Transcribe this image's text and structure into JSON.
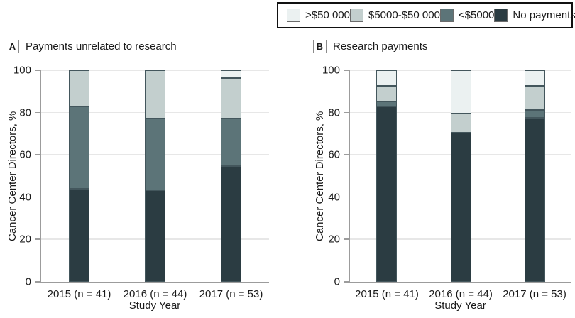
{
  "style": {
    "background": "#ffffff",
    "text_color": "#1a1a1a",
    "axis_color": "#9c9c9c",
    "grid_color": "#e7e7e7",
    "segment_border_color": "#43565c",
    "legend_border_color": "#111111"
  },
  "legend": {
    "items": [
      {
        "name": "gt-50000",
        "label": ">$50 000",
        "color": "#ebf1f1"
      },
      {
        "name": "5000-to-50000",
        "label": "$5000-$50 000",
        "color": "#c3cfce"
      },
      {
        "name": "lt-5000",
        "label": "<$5000",
        "color": "#5c7478"
      },
      {
        "name": "no-payments",
        "label": "No payments",
        "color": "#2b3c42"
      }
    ]
  },
  "panels": [
    {
      "letter": "A",
      "title": "Payments unrelated to research",
      "ylabel": "Cancer Center Directors, %",
      "xlabel": "Study Year"
    },
    {
      "letter": "B",
      "title": "Research payments",
      "ylabel": "Cancer Center Directors, %",
      "xlabel": "Study Year"
    }
  ],
  "chart_data": [
    {
      "type": "bar",
      "stacked": true,
      "title": "Payments unrelated to research",
      "xlabel": "Study Year",
      "ylabel": "Cancer Center Directors, %",
      "ylim": [
        0,
        100
      ],
      "yticks": [
        0,
        20,
        40,
        60,
        80,
        100
      ],
      "grid": true,
      "categories": [
        "2015 (n = 41)",
        "2016 (n = 44)",
        "2017 (n = 53)"
      ],
      "series": [
        {
          "name": "No payments",
          "color": "#2b3c42",
          "values": [
            43.9,
            43.2,
            54.7
          ]
        },
        {
          "name": "<$5000",
          "color": "#5c7478",
          "values": [
            39.0,
            34.1,
            22.6
          ]
        },
        {
          "name": "$5000-$50 000",
          "color": "#c3cfce",
          "values": [
            17.1,
            22.7,
            18.9
          ]
        },
        {
          "name": ">$50 000",
          "color": "#ebf1f1",
          "values": [
            0.0,
            0.0,
            3.8
          ]
        }
      ]
    },
    {
      "type": "bar",
      "stacked": true,
      "title": "Research payments",
      "xlabel": "Study Year",
      "ylabel": "Cancer Center Directors, %",
      "ylim": [
        0,
        100
      ],
      "yticks": [
        0,
        20,
        40,
        60,
        80,
        100
      ],
      "grid": true,
      "categories": [
        "2015 (n = 41)",
        "2016 (n = 44)",
        "2017 (n = 53)"
      ],
      "series": [
        {
          "name": "No payments",
          "color": "#2b3c42",
          "values": [
            82.9,
            70.5,
            77.4
          ]
        },
        {
          "name": "<$5000",
          "color": "#5c7478",
          "values": [
            2.4,
            0.0,
            3.8
          ]
        },
        {
          "name": "$5000-$50 000",
          "color": "#c3cfce",
          "values": [
            7.3,
            9.1,
            11.3
          ]
        },
        {
          "name": ">$50 000",
          "color": "#ebf1f1",
          "values": [
            7.3,
            20.5,
            7.5
          ]
        }
      ]
    }
  ]
}
